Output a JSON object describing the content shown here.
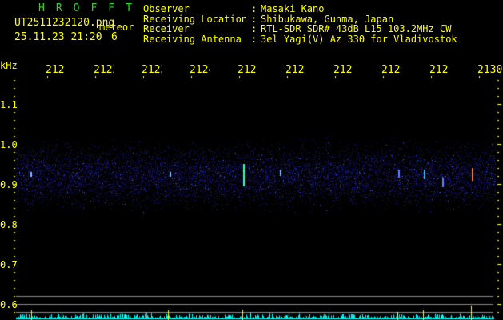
{
  "header": {
    "brand": "HROFFT",
    "filename": "UT2511232120.png",
    "type": "meteor",
    "datetime": "25.11.23 21:20",
    "count": "6",
    "fields": [
      {
        "label": "Observer",
        "value": "Masaki Kano"
      },
      {
        "label": "Receiving Location",
        "value": "Shibukawa, Gunma, Japan"
      },
      {
        "label": "Receiver",
        "value": "RTL-SDR SDR# 43dB L15 103.2MHz CW"
      },
      {
        "label": "Receiving Antenna",
        "value": "3el Yagi(V) Az 330 for Vladivostok"
      }
    ]
  },
  "axis": {
    "y_unit": "kHz",
    "y_ticks": [
      "1.1",
      "1.0",
      "0.9",
      "0.8",
      "0.7",
      "0.6"
    ],
    "x_ticks": [
      "2121",
      "2122",
      "2123",
      "2124",
      "2125",
      "2126",
      "2127",
      "2128",
      "2129",
      "2130"
    ]
  },
  "colors": {
    "text": "#ffff00",
    "brand": "#22dd22",
    "noise": "#00ffff",
    "grid": "#888888"
  }
}
